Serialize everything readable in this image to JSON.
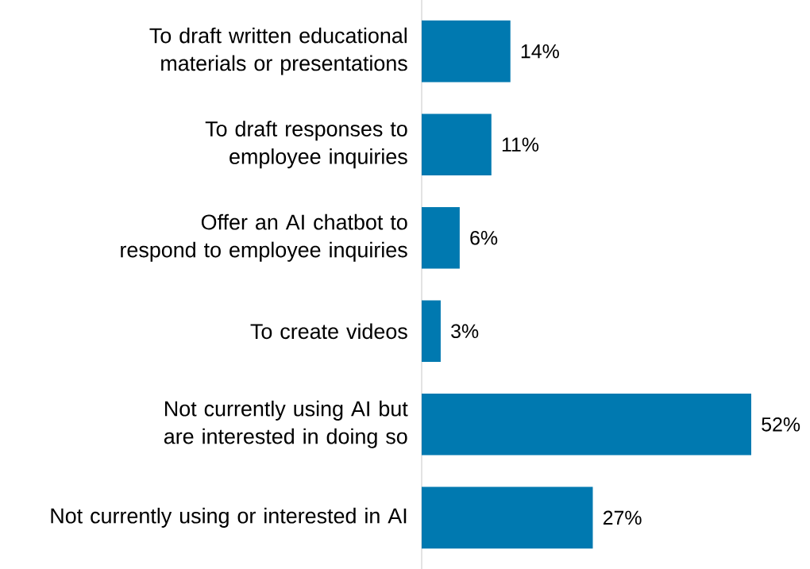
{
  "chart_data": {
    "type": "bar",
    "orientation": "horizontal",
    "categories": [
      "To draft written educational materials or presentations",
      "To draft responses to employee inquiries",
      "Offer an AI chatbot to respond to employee inquiries",
      "To create videos",
      "Not currently using AI but are interested in doing so",
      "Not currently using or interested in AI"
    ],
    "values": [
      14,
      11,
      6,
      3,
      52,
      27
    ],
    "value_labels": [
      "14%",
      "11%",
      "6%",
      "3%",
      "52%",
      "27%"
    ],
    "color": "#0079b0"
  }
}
